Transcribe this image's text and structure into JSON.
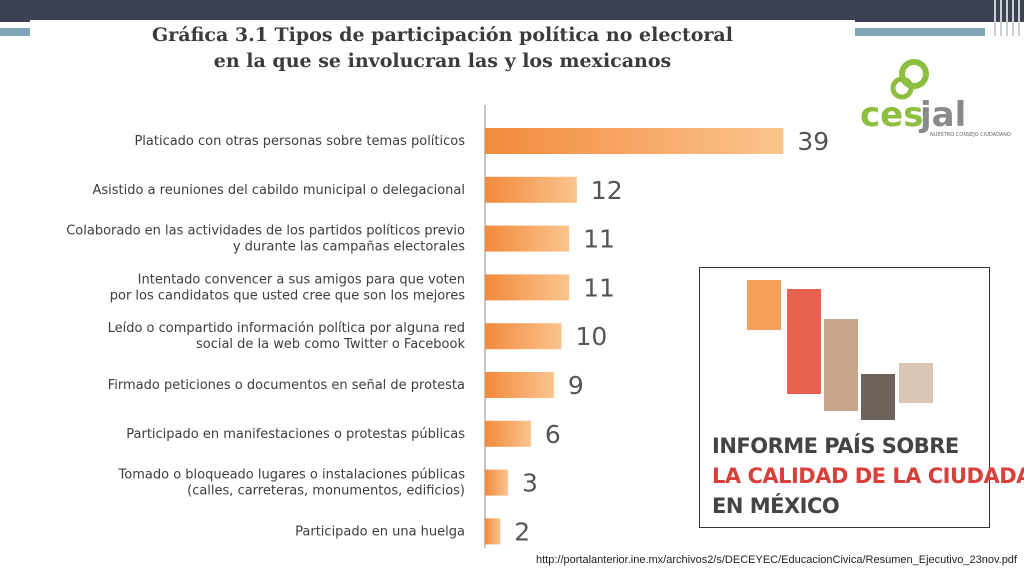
{
  "slide": {
    "source": "http://portalanterior.ine.mx/archivos2/s/DECEYEC/EducacionCivica/Resumen_Ejecutivo_23nov.pdf",
    "logo": {
      "text_ces": "ces",
      "text_jal": "jal",
      "tagline": "NUESTRO CONSEJO CIUDADANO",
      "color": "#8cbf3f"
    },
    "report": {
      "line1": "INFORME PAÍS SOBRE",
      "line2": "LA CALIDAD DE LA CIUDADANÍA",
      "line3": "EN MÉXICO"
    }
  },
  "chart_data": {
    "type": "bar",
    "orientation": "horizontal",
    "title_line1": "Gráfica 3.1 Tipos de participación política no electoral",
    "title_line2": "en la que se involucran las y los mexicanos",
    "bar_color": "#f28a3c",
    "categories": [
      [
        "Platicado con otras personas sobre temas políticos"
      ],
      [
        "Asistido a reuniones del cabildo municipal o delegacional"
      ],
      [
        "Colaborado en las actividades de los partidos políticos previo",
        "y durante las campañas electorales"
      ],
      [
        "Intentado convencer a sus amigos para que voten",
        "por los candidatos que usted cree que son los mejores"
      ],
      [
        "Leído o compartido información política por alguna red",
        "social de la web como Twitter o Facebook"
      ],
      [
        "Firmado peticiones o documentos en señal de protesta"
      ],
      [
        "Participado en manifestaciones o protestas públicas"
      ],
      [
        "Tomado o bloqueado lugares o instalaciones públicas",
        "(calles, carreteras, monumentos, edificios)"
      ],
      [
        "Participado en una huelga"
      ]
    ],
    "values": [
      39,
      12,
      11,
      11,
      10,
      9,
      6,
      3,
      2
    ],
    "xlim": [
      0,
      40
    ],
    "grid": false,
    "legend": "none"
  }
}
